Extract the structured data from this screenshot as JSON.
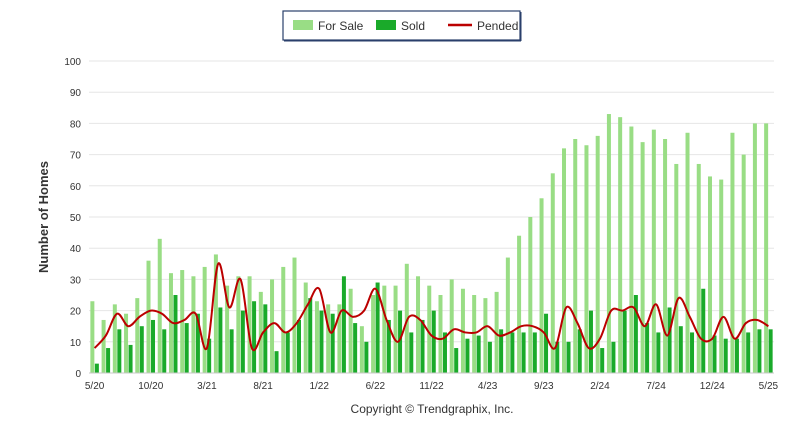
{
  "chart_data": {
    "type": "bar",
    "ylabel": "Number of Homes",
    "ylim": [
      0,
      100
    ],
    "yticks": [
      0,
      10,
      20,
      30,
      40,
      50,
      60,
      70,
      80,
      90,
      100
    ],
    "grid": true,
    "legend_position": "top-center",
    "footer": "Copyright © Trendgraphix, Inc.",
    "x_tick_labels": [
      "5/20",
      "10/20",
      "3/21",
      "8/21",
      "1/22",
      "6/22",
      "11/22",
      "4/23",
      "9/23",
      "2/24",
      "7/24",
      "12/24",
      "5/25"
    ],
    "months": [
      "5/20",
      "6/20",
      "7/20",
      "8/20",
      "9/20",
      "10/20",
      "11/20",
      "12/20",
      "1/21",
      "2/21",
      "3/21",
      "4/21",
      "5/21",
      "6/21",
      "7/21",
      "8/21",
      "9/21",
      "10/21",
      "11/21",
      "12/21",
      "1/22",
      "2/22",
      "3/22",
      "4/22",
      "5/22",
      "6/22",
      "7/22",
      "8/22",
      "9/22",
      "10/22",
      "11/22",
      "12/22",
      "1/23",
      "2/23",
      "3/23",
      "4/23",
      "5/23",
      "6/23",
      "7/23",
      "8/23",
      "9/23",
      "10/23",
      "11/23",
      "12/23",
      "1/24",
      "2/24",
      "3/24",
      "4/24",
      "5/24",
      "6/24",
      "7/24",
      "8/24",
      "9/24",
      "10/24",
      "11/24",
      "12/24",
      "1/25",
      "2/25",
      "3/25",
      "4/25",
      "5/25"
    ],
    "series": [
      {
        "name": "For Sale",
        "type": "bar",
        "color": "#99dd85",
        "values": [
          23,
          17,
          22,
          19,
          24,
          36,
          43,
          32,
          33,
          31,
          34,
          38,
          28,
          31,
          31,
          26,
          30,
          34,
          37,
          29,
          23,
          22,
          22,
          27,
          15,
          25,
          28,
          28,
          35,
          31,
          28,
          25,
          30,
          27,
          25,
          24,
          26,
          37,
          44,
          50,
          56,
          64,
          72,
          75,
          73,
          76,
          83,
          82,
          79,
          74,
          78,
          75,
          67,
          77,
          67,
          63,
          62,
          77,
          70,
          80,
          80
        ]
      },
      {
        "name": "Sold",
        "type": "bar",
        "color": "#1aaa2a",
        "values": [
          3,
          8,
          14,
          9,
          15,
          17,
          14,
          25,
          16,
          19,
          11,
          21,
          14,
          20,
          23,
          22,
          7,
          13,
          17,
          24,
          20,
          19,
          31,
          16,
          10,
          29,
          17,
          20,
          13,
          17,
          20,
          13,
          8,
          11,
          12,
          10,
          14,
          13,
          13,
          13,
          19,
          10,
          10,
          14,
          20,
          8,
          10,
          20,
          25,
          16,
          13,
          21,
          15,
          13,
          27,
          12,
          11,
          11,
          13,
          14,
          14
        ]
      },
      {
        "name": "Pended",
        "type": "line",
        "color": "#bb0000",
        "values": [
          8,
          12,
          19,
          15,
          18,
          20,
          19,
          16,
          17,
          19,
          8,
          35,
          21,
          30,
          8,
          13,
          16,
          13,
          16,
          22,
          27,
          13,
          20,
          18,
          20,
          27,
          17,
          10,
          18,
          17,
          12,
          11,
          14,
          13,
          13,
          15,
          12,
          13,
          15,
          15,
          13,
          8,
          21,
          16,
          8,
          11,
          20,
          20,
          21,
          15,
          22,
          12,
          24,
          18,
          11,
          11,
          18,
          11,
          16,
          17,
          15
        ]
      }
    ]
  }
}
